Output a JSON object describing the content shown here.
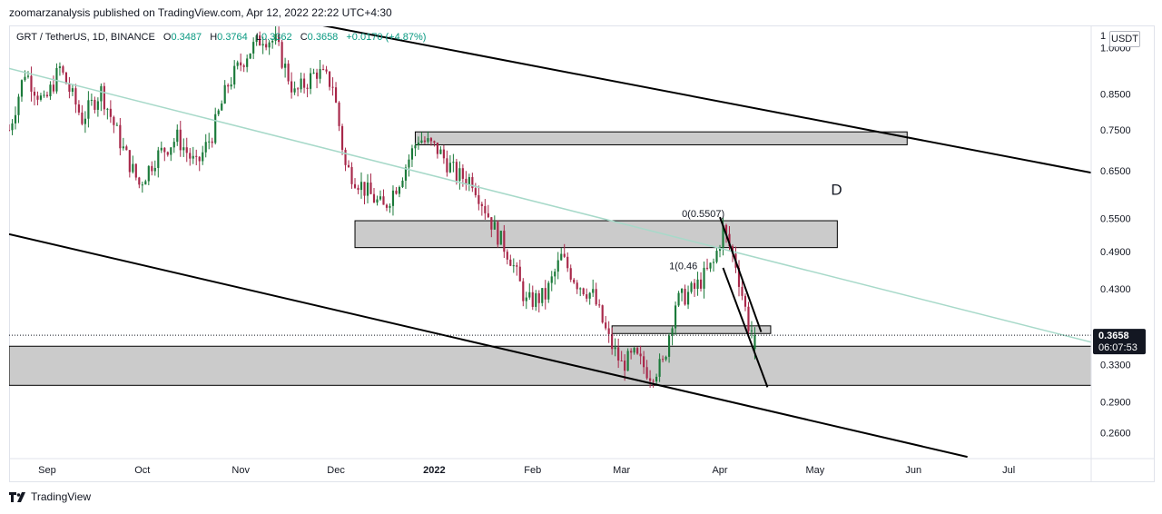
{
  "header": {
    "publish_line": "zoomarzanalysis published on TradingView.com, Apr 12, 2022 22:22 UTC+4:30"
  },
  "legend": {
    "symbol": "GRT / TetherUS, 1D, BINANCE",
    "open_label": "O",
    "open": "0.3487",
    "high_label": "H",
    "high": "0.3764",
    "low_label": "L",
    "low": "0.3362",
    "close_label": "C",
    "close": "0.3658",
    "change": "+0.0170 (+4.87%)"
  },
  "currency_button": "USDT",
  "footer": {
    "brand": "TradingView"
  },
  "annotations": {
    "wave_label": "D",
    "fib_top": "0(0.5507)",
    "fib_bottom": "1(0.46"
  },
  "price_tag": {
    "price": "0.3658",
    "countdown": "06:07:53"
  },
  "colors": {
    "up": "#089981",
    "down": "#f23645",
    "candle_up": "#1b7a3a",
    "candle_down": "#a8284a",
    "zone_fill": "#c8c8c8",
    "teal_line": "#a7d9c9",
    "trendline": "#000000"
  },
  "chart_data": {
    "type": "candlestick",
    "y_scale": "log",
    "ylim": [
      0.2376,
      1.0776
    ],
    "y_ticks": [
      "1.0000",
      "0.8500",
      "0.7500",
      "0.6500",
      "0.5500",
      "0.4900",
      "0.4300",
      "0.3300",
      "0.2900",
      "0.2600"
    ],
    "y_tick_values": [
      1.0,
      0.85,
      0.75,
      0.65,
      0.55,
      0.49,
      0.43,
      0.33,
      0.29,
      0.26
    ],
    "y_top_partial_label": "1",
    "x_start_date": "2021-08-20",
    "x_end_date": "2022-07-27",
    "x_ticks": [
      {
        "label": "Sep",
        "date": "2021-09-01"
      },
      {
        "label": "Oct",
        "date": "2021-10-01"
      },
      {
        "label": "Nov",
        "date": "2021-11-01"
      },
      {
        "label": "Dec",
        "date": "2021-12-01"
      },
      {
        "label": "2022",
        "date": "2022-01-01",
        "bold": true
      },
      {
        "label": "Feb",
        "date": "2022-02-01"
      },
      {
        "label": "Mar",
        "date": "2022-03-01"
      },
      {
        "label": "Apr",
        "date": "2022-04-01"
      },
      {
        "label": "May",
        "date": "2022-05-01"
      },
      {
        "label": "Jun",
        "date": "2022-06-01"
      },
      {
        "label": "Jul",
        "date": "2022-07-01"
      }
    ],
    "close_path": [
      [
        "2021-08-20",
        0.75
      ],
      [
        "2021-08-25",
        0.92
      ],
      [
        "2021-08-31",
        0.82
      ],
      [
        "2021-09-05",
        0.93
      ],
      [
        "2021-09-12",
        0.78
      ],
      [
        "2021-09-18",
        0.86
      ],
      [
        "2021-09-25",
        0.7
      ],
      [
        "2021-09-30",
        0.62
      ],
      [
        "2021-10-05",
        0.68
      ],
      [
        "2021-10-12",
        0.73
      ],
      [
        "2021-10-18",
        0.66
      ],
      [
        "2021-10-23",
        0.74
      ],
      [
        "2021-10-28",
        0.88
      ],
      [
        "2021-11-03",
        0.98
      ],
      [
        "2021-11-08",
        1.04
      ],
      [
        "2021-11-12",
        1.02
      ],
      [
        "2021-11-18",
        0.85
      ],
      [
        "2021-11-25",
        0.92
      ],
      [
        "2021-11-30",
        0.88
      ],
      [
        "2021-12-04",
        0.66
      ],
      [
        "2021-12-10",
        0.61
      ],
      [
        "2021-12-16",
        0.57
      ],
      [
        "2021-12-21",
        0.63
      ],
      [
        "2021-12-27",
        0.73
      ],
      [
        "2022-01-02",
        0.7
      ],
      [
        "2022-01-08",
        0.64
      ],
      [
        "2022-01-13",
        0.63
      ],
      [
        "2022-01-20",
        0.53
      ],
      [
        "2022-01-25",
        0.48
      ],
      [
        "2022-01-30",
        0.41
      ],
      [
        "2022-02-05",
        0.42
      ],
      [
        "2022-02-10",
        0.48
      ],
      [
        "2022-02-15",
        0.44
      ],
      [
        "2022-02-20",
        0.42
      ],
      [
        "2022-02-25",
        0.36
      ],
      [
        "2022-03-01",
        0.33
      ],
      [
        "2022-03-05",
        0.34
      ],
      [
        "2022-03-10",
        0.32
      ],
      [
        "2022-03-14",
        0.33
      ],
      [
        "2022-03-18",
        0.41
      ],
      [
        "2022-03-24",
        0.43
      ],
      [
        "2022-03-30",
        0.47
      ],
      [
        "2022-04-02",
        0.53
      ],
      [
        "2022-04-06",
        0.47
      ],
      [
        "2022-04-10",
        0.38
      ],
      [
        "2022-04-12",
        0.3658
      ]
    ],
    "zones": [
      {
        "from": "2021-12-26",
        "to": "2022-05-30",
        "low": 0.712,
        "high": 0.745
      },
      {
        "from": "2021-12-07",
        "to": "2022-05-08",
        "low": 0.497,
        "high": 0.546
      },
      {
        "from": "2022-02-26",
        "to": "2022-04-17",
        "low": 0.368,
        "high": 0.378
      },
      {
        "from": "2021-08-20",
        "to": "2022-07-27",
        "low": 0.307,
        "high": 0.352
      }
    ],
    "trendlines": [
      {
        "from": [
          "2021-11-06",
          1.13
        ],
        "to": [
          "2022-07-27",
          0.646
        ],
        "color": "#000000"
      },
      {
        "from": [
          "2021-08-20",
          0.521
        ],
        "to": [
          "2022-06-18",
          0.239
        ],
        "color": "#000000"
      },
      {
        "from": [
          "2021-08-20",
          0.93
        ],
        "to": [
          "2022-07-27",
          0.357
        ],
        "color": "#a7d9c9"
      },
      {
        "from": [
          "2022-04-01",
          0.553
        ],
        "to": [
          "2022-04-14",
          0.37
        ],
        "color": "#000000"
      },
      {
        "from": [
          "2022-04-02",
          0.463
        ],
        "to": [
          "2022-04-16",
          0.305
        ],
        "color": "#000000"
      }
    ]
  }
}
